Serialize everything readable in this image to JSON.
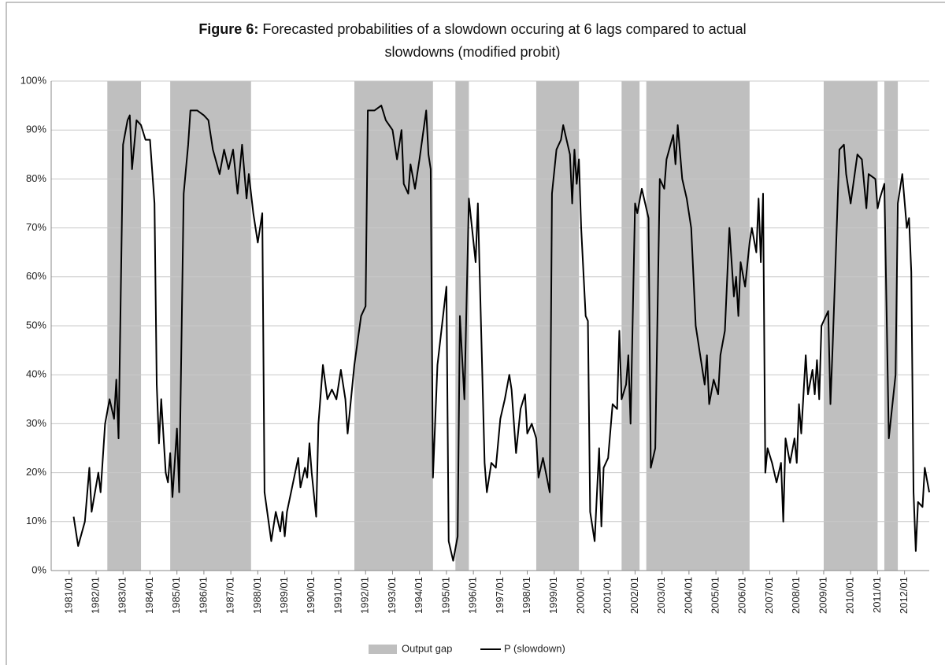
{
  "chart_data": {
    "type": "line",
    "title_prefix": "Figure 6:",
    "title": [
      "Forecasted probabilities of a slowdown occuring at 6 lags compared to actual",
      "slowdowns (modified probit)"
    ],
    "xlim": [
      "1980/05",
      "2012/12"
    ],
    "xticks": [
      "1981/01",
      "1982/01",
      "1983/01",
      "1984/01",
      "1985/01",
      "1986/01",
      "1987/01",
      "1988/01",
      "1989/01",
      "1990/01",
      "1991/01",
      "1992/01",
      "1993/01",
      "1994/01",
      "1995/01",
      "1996/01",
      "1997/01",
      "1998/01",
      "1999/01",
      "2000/01",
      "2001/01",
      "2002/01",
      "2003/01",
      "2004/01",
      "2005/01",
      "2006/01",
      "2007/01",
      "2008/01",
      "2009/01",
      "2010/01",
      "2011/01",
      "2012/01"
    ],
    "ylim": [
      0,
      100
    ],
    "yticks": [
      {
        "value": 0,
        "label": "0%"
      },
      {
        "value": 10,
        "label": "10%"
      },
      {
        "value": 20,
        "label": "20%"
      },
      {
        "value": 30,
        "label": "30%"
      },
      {
        "value": 40,
        "label": "40%"
      },
      {
        "value": 50,
        "label": "50%"
      },
      {
        "value": 60,
        "label": "60%"
      },
      {
        "value": 70,
        "label": "70%"
      },
      {
        "value": 80,
        "label": "80%"
      },
      {
        "value": 90,
        "label": "90%"
      },
      {
        "value": 100,
        "label": "100%"
      }
    ],
    "grid": true,
    "legend": "bottom",
    "x": [
      "1981/03",
      "1981/05",
      "1981/08",
      "1981/10",
      "1981/11",
      "1982/02",
      "1982/03",
      "1982/05",
      "1982/07",
      "1982/09",
      "1982/10",
      "1982/11",
      "1983/01",
      "1983/03",
      "1983/04",
      "1983/05",
      "1983/07",
      "1983/09",
      "1983/11",
      "1984/01",
      "1984/03",
      "1984/04",
      "1984/05",
      "1984/06",
      "1984/08",
      "1984/09",
      "1984/10",
      "1984/11",
      "1985/01",
      "1985/02",
      "1985/04",
      "1985/06",
      "1985/07",
      "1985/10",
      "1986/01",
      "1986/03",
      "1986/05",
      "1986/08",
      "1986/10",
      "1986/12",
      "1987/02",
      "1987/04",
      "1987/06",
      "1987/08",
      "1987/09",
      "1987/11",
      "1988/01",
      "1988/03",
      "1988/04",
      "1988/07",
      "1988/09",
      "1988/11",
      "1988/12",
      "1989/01",
      "1989/02",
      "1989/07",
      "1989/08",
      "1989/10",
      "1989/11",
      "1989/12",
      "1990/01",
      "1990/03",
      "1990/04",
      "1990/06",
      "1990/08",
      "1990/10",
      "1990/12",
      "1991/02",
      "1991/04",
      "1991/05",
      "1991/08",
      "1991/11",
      "1992/01",
      "1992/02",
      "1992/05",
      "1992/08",
      "1992/10",
      "1993/01",
      "1993/03",
      "1993/05",
      "1993/06",
      "1993/08",
      "1993/09",
      "1993/11",
      "1994/01",
      "1994/04",
      "1994/05",
      "1994/06",
      "1994/07",
      "1994/09",
      "1994/11",
      "1995/01",
      "1995/02",
      "1995/04",
      "1995/06",
      "1995/07",
      "1995/09",
      "1995/11",
      "1996/02",
      "1996/03",
      "1996/06",
      "1996/07",
      "1996/09",
      "1996/11",
      "1997/01",
      "1997/03",
      "1997/05",
      "1997/06",
      "1997/08",
      "1997/10",
      "1997/12",
      "1998/01",
      "1998/03",
      "1998/05",
      "1998/06",
      "1998/08",
      "1998/11",
      "1998/12",
      "1999/02",
      "1999/04",
      "1999/05",
      "1999/08",
      "1999/09",
      "1999/10",
      "1999/11",
      "1999/12",
      "2000/01",
      "2000/03",
      "2000/04",
      "2000/05",
      "2000/07",
      "2000/09",
      "2000/10",
      "2000/11",
      "2001/01",
      "2001/03",
      "2001/05",
      "2001/06",
      "2001/07",
      "2001/09",
      "2001/10",
      "2001/11",
      "2002/01",
      "2002/02",
      "2002/04",
      "2002/07",
      "2002/08",
      "2002/10",
      "2002/12",
      "2003/02",
      "2003/03",
      "2003/06",
      "2003/07",
      "2003/08",
      "2003/10",
      "2003/12",
      "2004/02",
      "2004/03",
      "2004/04",
      "2004/06",
      "2004/08",
      "2004/09",
      "2004/10",
      "2004/12",
      "2005/02",
      "2005/03",
      "2005/05",
      "2005/07",
      "2005/09",
      "2005/10",
      "2005/11",
      "2005/12",
      "2006/02",
      "2006/04",
      "2006/05",
      "2006/07",
      "2006/08",
      "2006/09",
      "2006/10",
      "2006/11",
      "2006/12",
      "2007/02",
      "2007/04",
      "2007/06",
      "2007/07",
      "2007/08",
      "2007/10",
      "2007/12",
      "2008/01",
      "2008/02",
      "2008/03",
      "2008/05",
      "2008/06",
      "2008/08",
      "2008/09",
      "2008/10",
      "2008/11",
      "2008/12",
      "2009/03",
      "2009/04",
      "2009/05",
      "2009/08",
      "2009/10",
      "2009/11",
      "2010/01",
      "2010/04",
      "2010/06",
      "2010/08",
      "2010/09",
      "2010/12",
      "2011/01",
      "2011/02",
      "2011/04",
      "2011/06",
      "2011/09",
      "2011/10",
      "2011/12",
      "2012/02",
      "2012/03",
      "2012/04",
      "2012/05",
      "2012/06",
      "2012/07",
      "2012/09",
      "2012/10",
      "2012/12"
    ],
    "series": [
      {
        "name": "Output gap",
        "color": "#bfbfbf",
        "periods": [
          [
            "1982/06",
            "1983/09"
          ],
          [
            "1984/10",
            "1987/10"
          ],
          [
            "1991/08",
            "1994/07"
          ],
          [
            "1995/05",
            "1995/11"
          ],
          [
            "1998/05",
            "1999/12"
          ],
          [
            "2001/07",
            "2002/03"
          ],
          [
            "2002/06",
            "2006/04"
          ],
          [
            "2009/01",
            "2011/01"
          ],
          [
            "2011/04",
            "2011/10"
          ]
        ]
      },
      {
        "name": "P (slowdown)",
        "color": "#000000",
        "values": [
          11,
          5,
          10,
          21,
          12,
          20,
          16,
          30,
          35,
          31,
          39,
          27,
          87,
          92,
          93,
          82,
          92,
          91,
          88,
          88,
          75,
          38,
          26,
          35,
          20,
          18,
          24,
          15,
          29,
          16,
          77,
          87,
          94,
          94,
          93,
          92,
          86,
          81,
          86,
          82,
          86,
          77,
          87,
          76,
          81,
          73,
          67,
          73,
          16,
          6,
          12,
          8,
          12,
          7,
          12,
          23,
          17,
          21,
          19,
          26,
          20,
          11,
          30,
          42,
          35,
          37,
          35,
          41,
          35,
          28,
          42,
          52,
          54,
          94,
          94,
          95,
          92,
          90,
          84,
          90,
          79,
          77,
          83,
          78,
          84,
          94,
          85,
          82,
          19,
          42,
          50,
          58,
          6,
          2,
          7,
          52,
          35,
          76,
          63,
          75,
          22,
          16,
          22,
          21,
          31,
          35,
          40,
          37,
          24,
          33,
          36,
          28,
          30,
          27,
          19,
          23,
          16,
          77,
          86,
          88,
          91,
          85,
          75,
          86,
          79,
          84,
          70,
          52,
          51,
          12,
          6,
          25,
          9,
          21,
          23,
          34,
          33,
          49,
          35,
          38,
          44,
          30,
          75,
          73,
          78,
          72,
          21,
          25,
          80,
          78,
          84,
          89,
          83,
          91,
          80,
          76,
          70,
          60,
          50,
          44,
          38,
          44,
          34,
          39,
          36,
          44,
          49,
          70,
          56,
          60,
          52,
          63,
          58,
          67,
          70,
          65,
          76,
          63,
          77,
          20,
          25,
          22,
          18,
          22,
          10,
          27,
          22,
          27,
          22,
          34,
          28,
          44,
          36,
          41,
          36,
          43,
          35,
          50,
          53,
          34,
          46,
          86,
          87,
          81,
          75,
          85,
          84,
          74,
          81,
          80,
          74,
          76,
          79,
          27,
          40,
          75,
          81,
          70,
          72,
          61,
          16,
          4,
          14,
          13,
          21,
          16
        ]
      }
    ]
  }
}
